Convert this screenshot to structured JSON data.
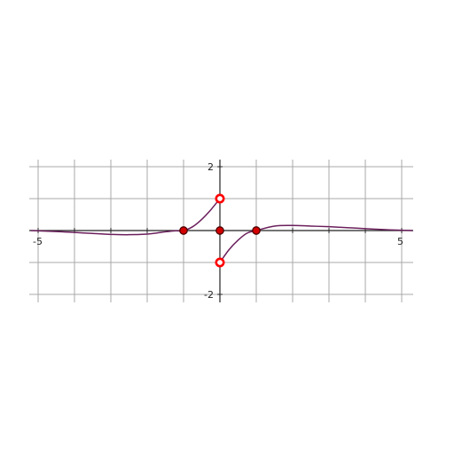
{
  "chart_data": {
    "type": "line",
    "title": "",
    "xlabel": "",
    "ylabel": "",
    "xlim": [
      -5.2,
      5.3
    ],
    "ylim": [
      -2.2,
      2.2
    ],
    "grid": true,
    "x_ticks_labeled": [
      "-5",
      "5"
    ],
    "y_ticks_labeled": [
      "2",
      "-2"
    ],
    "series": [
      {
        "segment": "left",
        "x": [
          -5.2,
          -4.5,
          -4,
          -3.5,
          -3,
          -2.5,
          -2,
          -1.75,
          -1.5,
          -1.25,
          -1,
          -0.75,
          -0.5,
          -0.25,
          0
        ],
        "y": [
          0.0,
          -0.03,
          -0.06,
          -0.09,
          -0.12,
          -0.13,
          -0.11,
          -0.08,
          -0.04,
          -0.01,
          0.0,
          0.12,
          0.35,
          0.65,
          1.0
        ]
      },
      {
        "segment": "right",
        "x": [
          0,
          0.25,
          0.5,
          0.75,
          1,
          1.5,
          2,
          2.5,
          3,
          3.5,
          4,
          4.5,
          5,
          5.3
        ],
        "y": [
          -1.0,
          -0.6,
          -0.3,
          -0.08,
          0.0,
          0.14,
          0.16,
          0.14,
          0.12,
          0.09,
          0.06,
          0.03,
          0.01,
          0.0
        ]
      }
    ],
    "closed_points": [
      {
        "x": -1,
        "y": 0
      },
      {
        "x": 0,
        "y": 0
      },
      {
        "x": 1,
        "y": 0
      }
    ],
    "open_points": [
      {
        "x": 0,
        "y": 1
      },
      {
        "x": 0,
        "y": -1
      }
    ],
    "colors": {
      "curve": "#6b1f5c",
      "grid": "#a8a8a8",
      "axis": "#222222",
      "point_fill": "#d40000",
      "point_stroke": "#4a0000",
      "open_point_stroke": "#ff0000",
      "open_point_fill": "#ffffff"
    }
  }
}
